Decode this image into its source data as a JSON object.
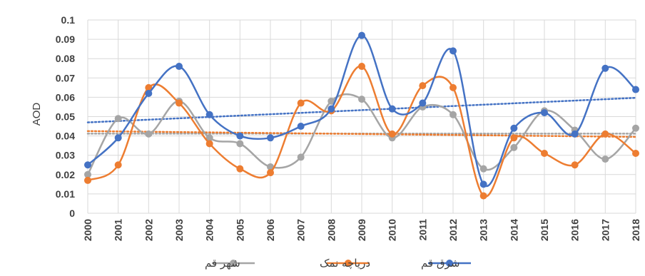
{
  "chart_data": {
    "type": "line",
    "title": "",
    "xlabel": "",
    "ylabel": "AOD",
    "ylim": [
      0,
      0.1
    ],
    "y_ticks": [
      "0",
      "0.01",
      "0.02",
      "0.03",
      "0.04",
      "0.05",
      "0.06",
      "0.07",
      "0.08",
      "0.09",
      "0.1"
    ],
    "grid": true,
    "legend_position": "bottom",
    "x": [
      "2000",
      "2001",
      "2002",
      "2003",
      "2004",
      "2005",
      "2006",
      "2007",
      "2008",
      "2009",
      "2010",
      "2011",
      "2012",
      "2013",
      "2014",
      "2015",
      "2016",
      "2017",
      "2018"
    ],
    "series": [
      {
        "name": "شرق قم",
        "color": "#4472c4",
        "values": [
          0.025,
          0.039,
          0.062,
          0.076,
          0.051,
          0.04,
          0.039,
          0.045,
          0.054,
          0.092,
          0.054,
          0.057,
          0.084,
          0.015,
          0.044,
          0.052,
          0.041,
          0.075,
          0.064
        ],
        "trend": [
          0.047,
          0.0597
        ]
      },
      {
        "name": "دریاچه نمک",
        "color": "#ed7d31",
        "values": [
          0.017,
          0.025,
          0.065,
          0.057,
          0.036,
          0.023,
          0.021,
          0.057,
          0.053,
          0.076,
          0.041,
          0.066,
          0.065,
          0.009,
          0.039,
          0.031,
          0.025,
          0.041,
          0.031
        ],
        "trend": [
          0.0425,
          0.0395
        ]
      },
      {
        "name": "شهر قم",
        "color": "#a5a5a5",
        "values": [
          0.02,
          0.049,
          0.041,
          0.058,
          0.039,
          0.036,
          0.024,
          0.029,
          0.058,
          0.059,
          0.039,
          0.055,
          0.051,
          0.023,
          0.034,
          0.053,
          0.043,
          0.028,
          0.044
        ],
        "trend": [
          0.0412,
          0.0412
        ]
      }
    ]
  }
}
